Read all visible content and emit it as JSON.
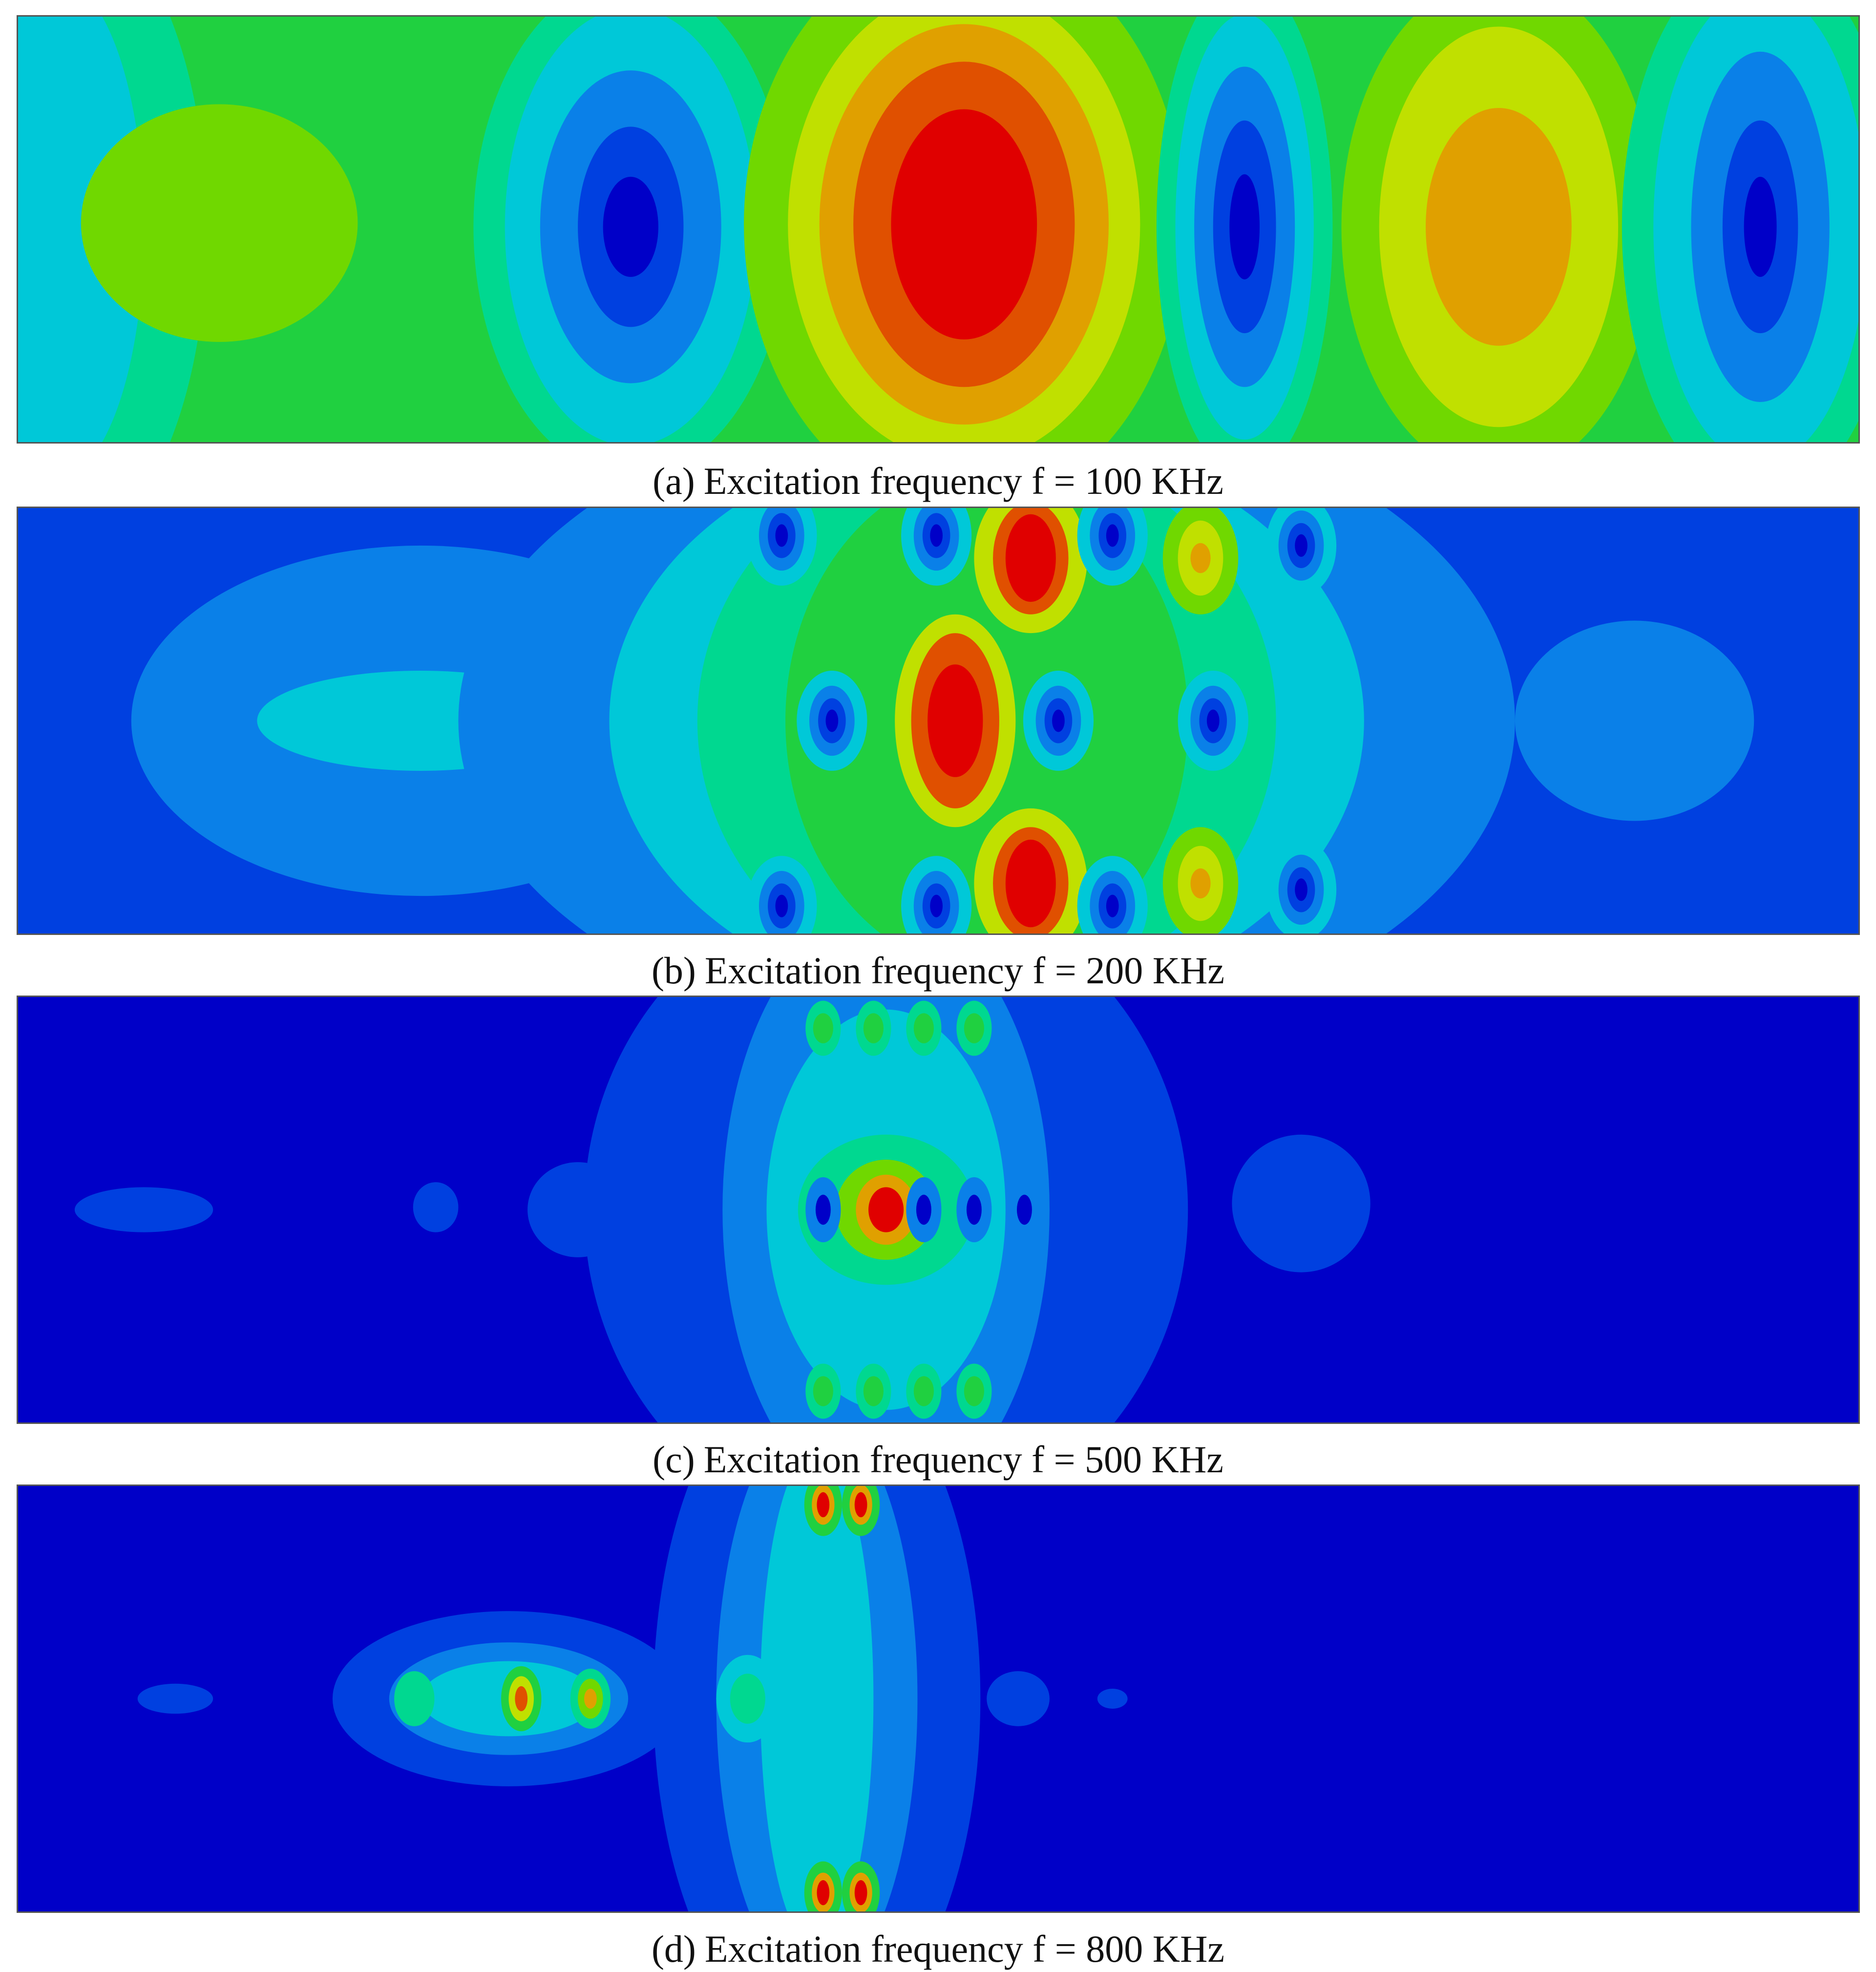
{
  "panels": [
    {
      "label": "(a)",
      "caption": "Excitation frequency f = 100 KHz"
    },
    {
      "label": "(b)",
      "caption": "Excitation frequency f = 200 KHz"
    },
    {
      "label": "(c)",
      "caption": "Excitation frequency f = 500 KHz"
    },
    {
      "label": "(d)",
      "caption": "Excitation frequency f = 800 KHz"
    }
  ]
}
